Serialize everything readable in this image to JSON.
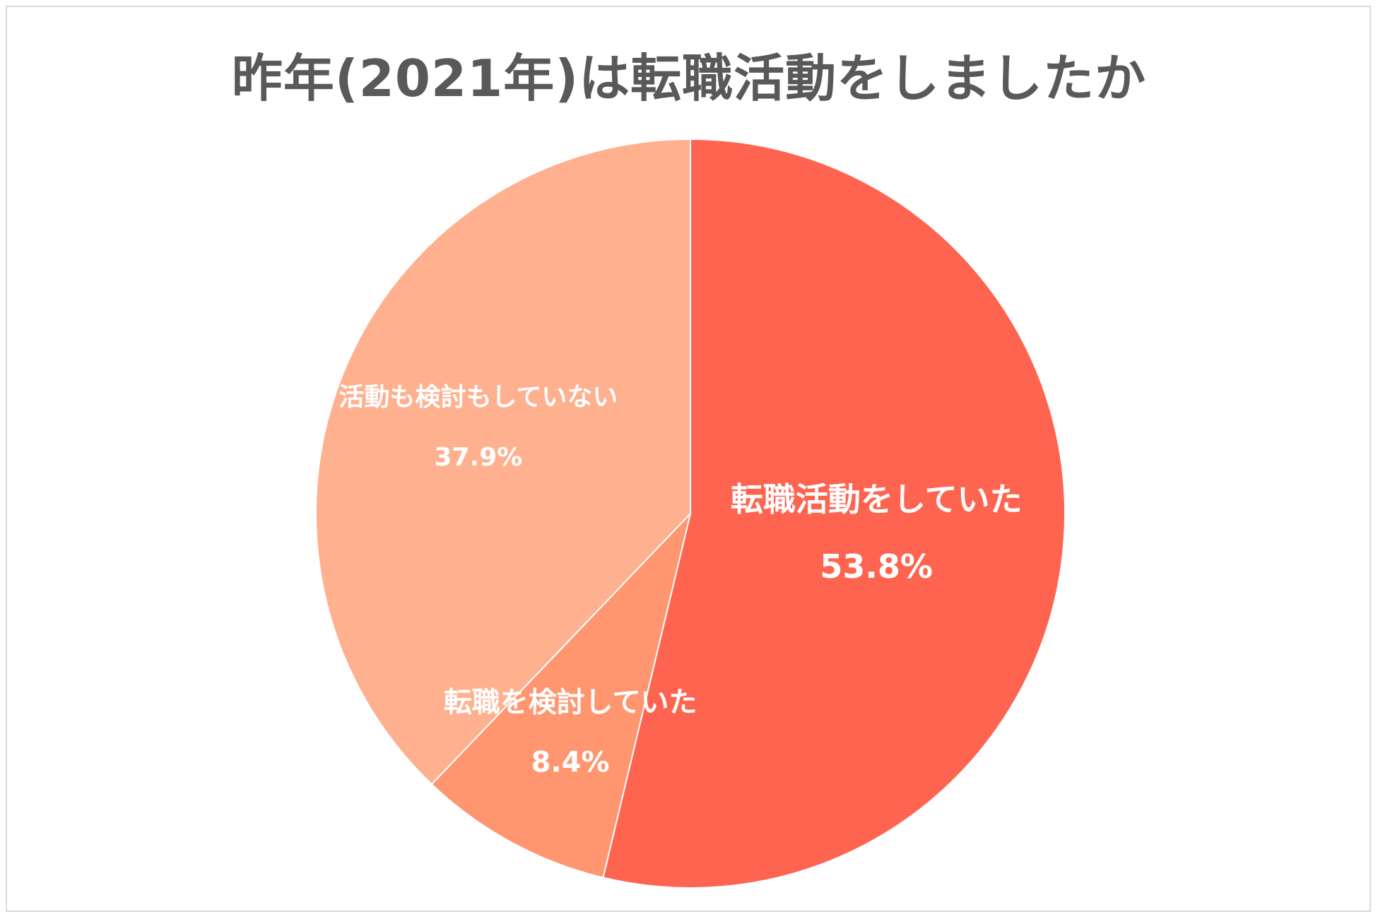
{
  "chart_data": {
    "type": "pie",
    "title": "昨年(2021年)は転職活動をしましたか",
    "categories": [
      "転職活動をしていた",
      "転職を検討していた",
      "活動も検討もしていない"
    ],
    "values": [
      53.8,
      8.4,
      37.9
    ],
    "value_labels": [
      "53.8%",
      "8.4%",
      "37.9%"
    ],
    "start_angle_deg": 0,
    "direction": "clockwise",
    "legend": "none",
    "colors": [
      "#FF6450",
      "#FF9670",
      "#FFB08E"
    ]
  }
}
